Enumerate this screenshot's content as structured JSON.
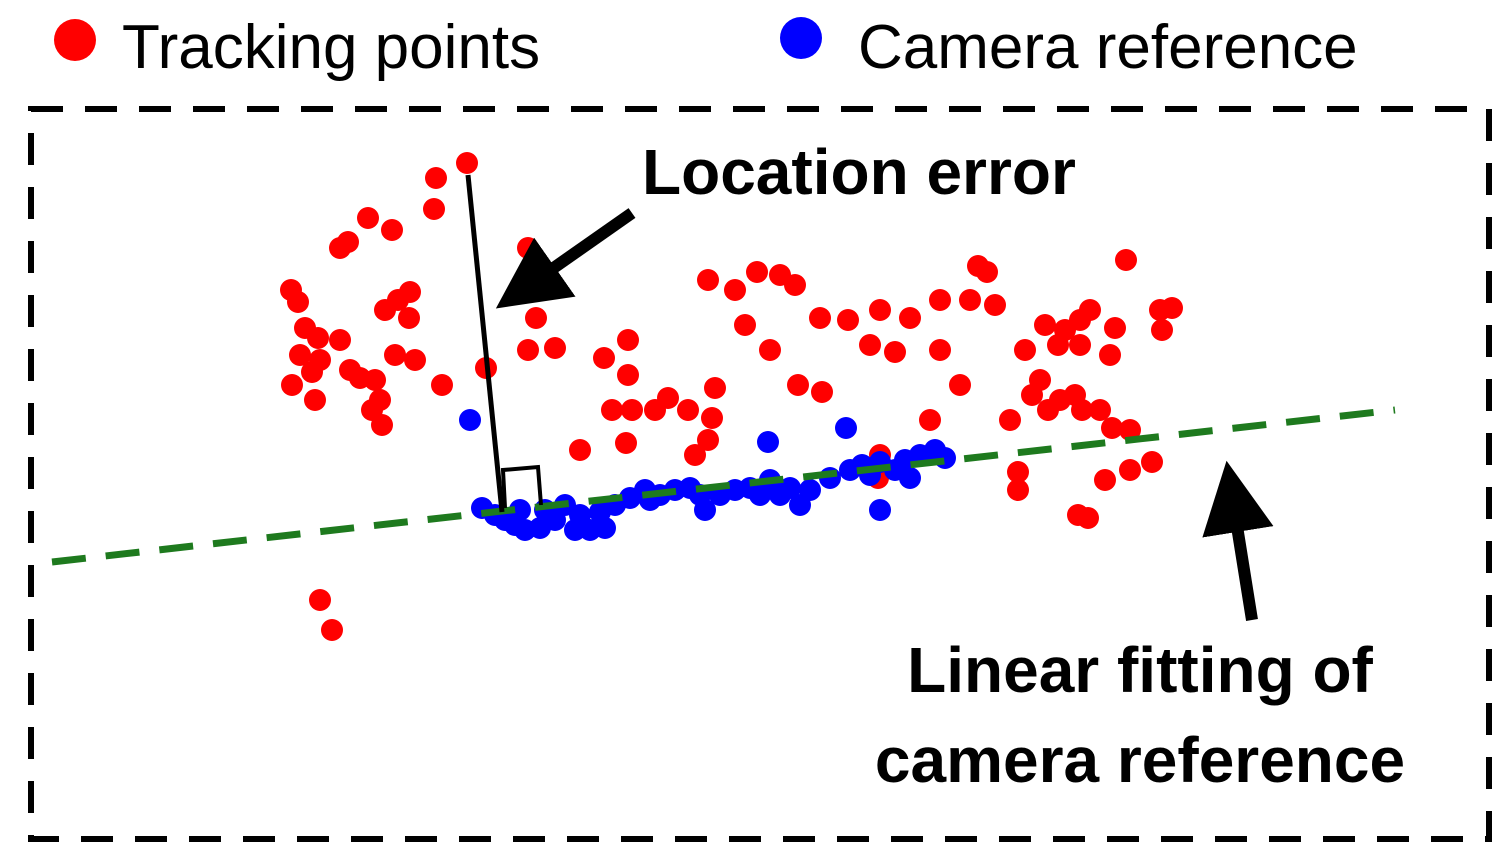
{
  "legend": {
    "items": [
      {
        "label": "Tracking points"
      },
      {
        "label": "Camera reference"
      }
    ]
  },
  "annotations": {
    "location_error": "Location error",
    "linear_fit": [
      "Linear fitting of",
      "camera reference"
    ]
  }
}
